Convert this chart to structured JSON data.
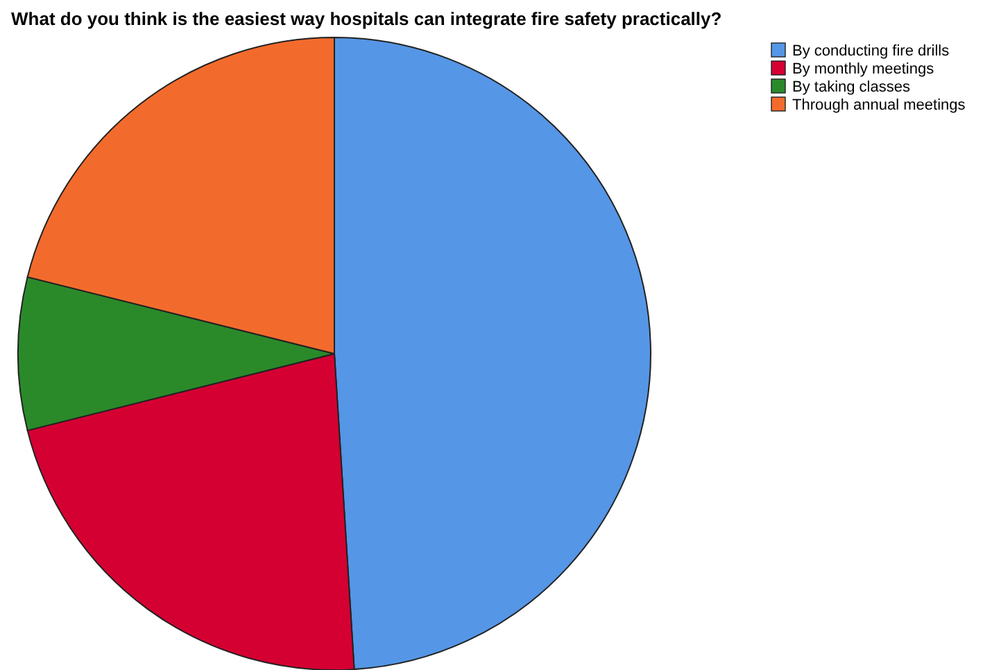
{
  "chart_data": {
    "type": "pie",
    "title": "What do you think is the easiest way hospitals can integrate fire safety practically?",
    "categories": [
      "By conducting fire drills",
      "By monthly meetings",
      "By taking classes",
      "Through annual meetings"
    ],
    "values": [
      49.0,
      22.1,
      7.8,
      21.1
    ],
    "colors": [
      "#5596e6",
      "#d50032",
      "#2a8a2a",
      "#f36b2c"
    ],
    "legend": "top right"
  }
}
